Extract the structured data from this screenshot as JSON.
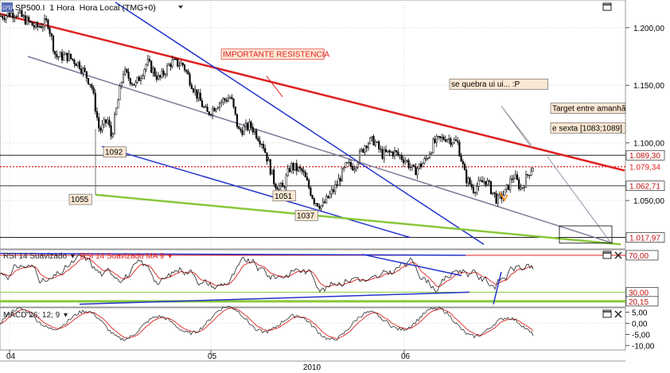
{
  "header": {
    "logo_text": "CFD",
    "symbol": "SP500.I",
    "interval": "1 Hora",
    "timezone_label": "Hora Local (TMG+0)"
  },
  "colors": {
    "background": "#ffffff",
    "grid": "#d9d9d9",
    "resistance": "#e02020",
    "channel": "#2233cc",
    "support": "#88c83a",
    "midline": "#7a7a99",
    "price": "#000000",
    "rsi": "#222222",
    "rsi_ma": "#dd2222",
    "macd": "#333333",
    "macd_signal": "#dd2222",
    "label_bg": "#fce8d4"
  },
  "chart_data": [
    {
      "type": "candlestick",
      "name": "price",
      "title": "SP500.I 1 Hora Hora Local (TMG+0)",
      "ylim": [
        1008,
        1224
      ],
      "y_ticks": [
        1050,
        1100,
        1150,
        1200
      ],
      "y_tick_labels": [
        "1.050,00",
        "1.100,00",
        "1.150,00",
        "1.200,00"
      ],
      "price_levels": [
        {
          "value": 1089.3,
          "label": "1.089,30",
          "style": "solid"
        },
        {
          "value": 1079.34,
          "label": "1.079,34",
          "style": "dotted-red"
        },
        {
          "value": 1062.71,
          "label": "1.062,71",
          "style": "solid"
        },
        {
          "value": 1017.97,
          "label": "1.017,97",
          "style": "solid"
        }
      ],
      "close_path": [
        [
          0,
          1210
        ],
        [
          20,
          1213
        ],
        [
          45,
          1200
        ],
        [
          60,
          1205
        ],
        [
          70,
          1175
        ],
        [
          85,
          1175
        ],
        [
          100,
          1168
        ],
        [
          115,
          1150
        ],
        [
          125,
          1110
        ],
        [
          135,
          1120
        ],
        [
          140,
          1105
        ],
        [
          155,
          1162
        ],
        [
          170,
          1150
        ],
        [
          185,
          1170
        ],
        [
          200,
          1155
        ],
        [
          215,
          1170
        ],
        [
          230,
          1168
        ],
        [
          245,
          1145
        ],
        [
          260,
          1125
        ],
        [
          275,
          1135
        ],
        [
          290,
          1140
        ],
        [
          300,
          1110
        ],
        [
          315,
          1115
        ],
        [
          330,
          1100
        ],
        [
          345,
          1065
        ],
        [
          355,
          1060
        ],
        [
          365,
          1080
        ],
        [
          380,
          1075
        ],
        [
          395,
          1050
        ],
        [
          405,
          1045
        ],
        [
          420,
          1060
        ],
        [
          435,
          1080
        ],
        [
          445,
          1080
        ],
        [
          460,
          1100
        ],
        [
          470,
          1102
        ],
        [
          480,
          1090
        ],
        [
          495,
          1092
        ],
        [
          510,
          1085
        ],
        [
          520,
          1075
        ],
        [
          535,
          1085
        ],
        [
          545,
          1100
        ],
        [
          560,
          1105
        ],
        [
          575,
          1100
        ],
        [
          585,
          1070
        ],
        [
          595,
          1060
        ],
        [
          610,
          1068
        ],
        [
          625,
          1050
        ],
        [
          635,
          1057
        ],
        [
          645,
          1072
        ],
        [
          655,
          1060
        ],
        [
          665,
          1075
        ],
        [
          670,
          1080
        ]
      ],
      "trend_lines": [
        {
          "name": "resistance",
          "color": "resistance",
          "from": [
            0,
            1212
          ],
          "to": [
            785,
            1076
          ],
          "width": 2.5
        },
        {
          "name": "channel-upper",
          "color": "channel",
          "from": [
            145,
            1222
          ],
          "to": [
            608,
            1012
          ],
          "width": 1.5
        },
        {
          "name": "channel-lower",
          "color": "channel",
          "from": [
            128,
            1097
          ],
          "to": [
            515,
            1018
          ],
          "width": 1.5
        },
        {
          "name": "midline",
          "color": "midline",
          "from": [
            35,
            1175
          ],
          "to": [
            770,
            1013
          ],
          "width": 1.5
        },
        {
          "name": "support",
          "color": "support",
          "from": [
            120,
            1055
          ],
          "to": [
            780,
            1012
          ],
          "width": 2.5
        },
        {
          "name": "target-leg-1",
          "color": "midline",
          "from": [
            630,
            1132
          ],
          "to": [
            668,
            1096
          ],
          "width": 0.8
        },
        {
          "name": "target-leg-2",
          "color": "midline",
          "from": [
            688,
            1088
          ],
          "to": [
            768,
            1013
          ],
          "width": 0.8
        }
      ],
      "annotations": [
        {
          "text": "IMPORTANTE RESISTENCIA",
          "x": 278,
          "y": 1176
        },
        {
          "text": "se quebra ui ui... :P",
          "x": 565,
          "y": 1150
        },
        {
          "text": "Target entre amanhã",
          "x": 692,
          "y": 1129
        },
        {
          "text": "e sexta [1083;1089]",
          "x": 692,
          "y": 1112
        },
        {
          "text": "1092",
          "x": 130,
          "y": 1091
        },
        {
          "text": "1055",
          "x": 87,
          "y": 1050
        },
        {
          "text": "1051",
          "x": 343,
          "y": 1053
        },
        {
          "text": "1037",
          "x": 371,
          "y": 1036
        }
      ]
    },
    {
      "type": "line",
      "name": "rsi",
      "legend": [
        "RSI 14 Suavizado",
        "RSI 14 Suavizado MA 9"
      ],
      "ylim": [
        14,
        76
      ],
      "y_tick_labels": [
        "70,00",
        "30,00",
        "20,15"
      ],
      "levels": [
        70,
        30,
        20.15
      ]
    },
    {
      "type": "line",
      "name": "macd",
      "legend": [
        "MACD 26; 12; 9"
      ],
      "ylim": [
        -12,
        7
      ],
      "y_ticks": [
        5,
        0,
        -5,
        -10
      ],
      "y_tick_labels": [
        "5,00",
        "0,00",
        "-5,00",
        "-10,00"
      ]
    }
  ],
  "x_axis": {
    "ticks": [
      {
        "label": "04",
        "x": 12
      },
      {
        "label": "05",
        "x": 265
      },
      {
        "label": "06",
        "x": 508
      }
    ],
    "year_label": "2010"
  },
  "window_controls": {
    "icon": "maximize-icon",
    "close": "close-icon"
  }
}
